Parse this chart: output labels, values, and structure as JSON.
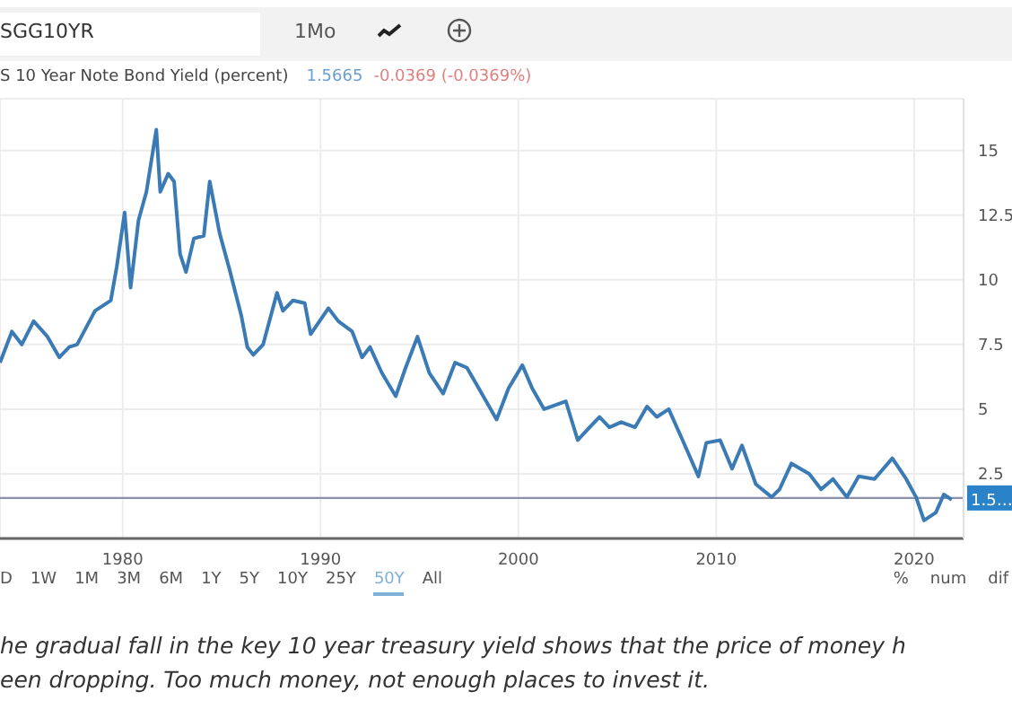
{
  "chart_data": {
    "type": "line",
    "title": "S 10 Year Note Bond Yield (percent)",
    "annotations": [
      "SGG10YR",
      "1Mo",
      "1.5665",
      "-0.0369 (-0.0369%)",
      "D",
      "1W",
      "1M",
      "3M",
      "6M",
      "1Y",
      "5Y",
      "10Y",
      "25Y",
      "50Y",
      "All",
      "%",
      "num",
      "dif",
      "he gradual fall in the key 10 year treasury yield shows that the price of money h",
      "een dropping. Too much money, not enough places to invest it."
    ],
    "series": [
      {
        "color": "#3a7ab5",
        "x": [
          1973.8,
          1974.4,
          1974.9,
          1975.5,
          1976.2,
          1976.8,
          1977.3,
          1977.7,
          1978.6,
          1979.4,
          1979.7,
          1980.1,
          1980.4,
          1980.8,
          1981.2,
          1981.7,
          1981.9,
          1982.3,
          1982.6,
          1982.9,
          1983.2,
          1983.6,
          1984.1,
          1984.4,
          1984.9,
          1985.4,
          1986.0,
          1986.3,
          1986.6,
          1987.1,
          1987.8,
          1988.1,
          1988.6,
          1989.2,
          1989.5,
          1990.4,
          1990.9,
          1991.6,
          1992.1,
          1992.5,
          1993.1,
          1993.8,
          1994.3,
          1994.9,
          1995.5,
          1996.2,
          1996.8,
          1997.4,
          1998.0,
          1998.9,
          1999.5,
          2000.2,
          2000.7,
          2001.3,
          2002.4,
          2003.0,
          2003.6,
          2004.1,
          2004.6,
          2005.2,
          2005.9,
          2006.5,
          2007.0,
          2007.6,
          2008.3,
          2009.1,
          2009.5,
          2010.2,
          2010.8,
          2011.3,
          2012.0,
          2012.8,
          2013.2,
          2013.8,
          2014.7,
          2015.3,
          2015.9,
          2016.6,
          2017.2,
          2018.0,
          2018.9,
          2019.6,
          2020.1,
          2020.5,
          2021.1,
          2021.5,
          2021.9
        ],
        "values": [
          6.8,
          8.0,
          7.5,
          8.4,
          7.8,
          7.0,
          7.4,
          7.5,
          8.8,
          9.2,
          10.5,
          12.6,
          9.7,
          12.3,
          13.4,
          15.8,
          13.4,
          14.1,
          13.8,
          11.0,
          10.3,
          11.6,
          11.7,
          13.8,
          11.8,
          10.4,
          8.6,
          7.4,
          7.1,
          7.5,
          9.5,
          8.8,
          9.2,
          9.1,
          7.9,
          8.9,
          8.4,
          8.0,
          7.0,
          7.4,
          6.4,
          5.5,
          6.6,
          7.8,
          6.4,
          5.6,
          6.8,
          6.6,
          5.8,
          4.6,
          5.8,
          6.7,
          5.8,
          5.0,
          5.3,
          3.8,
          4.3,
          4.7,
          4.3,
          4.5,
          4.3,
          5.1,
          4.7,
          5.0,
          3.8,
          2.4,
          3.7,
          3.8,
          2.7,
          3.6,
          2.1,
          1.6,
          1.9,
          2.9,
          2.5,
          1.9,
          2.3,
          1.6,
          2.4,
          2.3,
          3.1,
          2.3,
          1.6,
          0.7,
          1.0,
          1.7,
          1.5
        ]
      }
    ],
    "xlim": [
      1973.8,
      2022.5
    ],
    "xticks": [
      1980,
      1990,
      2000,
      2010,
      2020
    ],
    "ylim": [
      0,
      17
    ],
    "yticks": [
      2.5,
      5,
      7.5,
      10,
      12.5,
      15
    ],
    "ref_lines": [
      {
        "axis": "y",
        "value": 1.5665,
        "label": "1.5…",
        "color": "#8b8fa8"
      }
    ],
    "grid": true,
    "legend": false,
    "marker": "none",
    "line_style": "solid"
  }
}
